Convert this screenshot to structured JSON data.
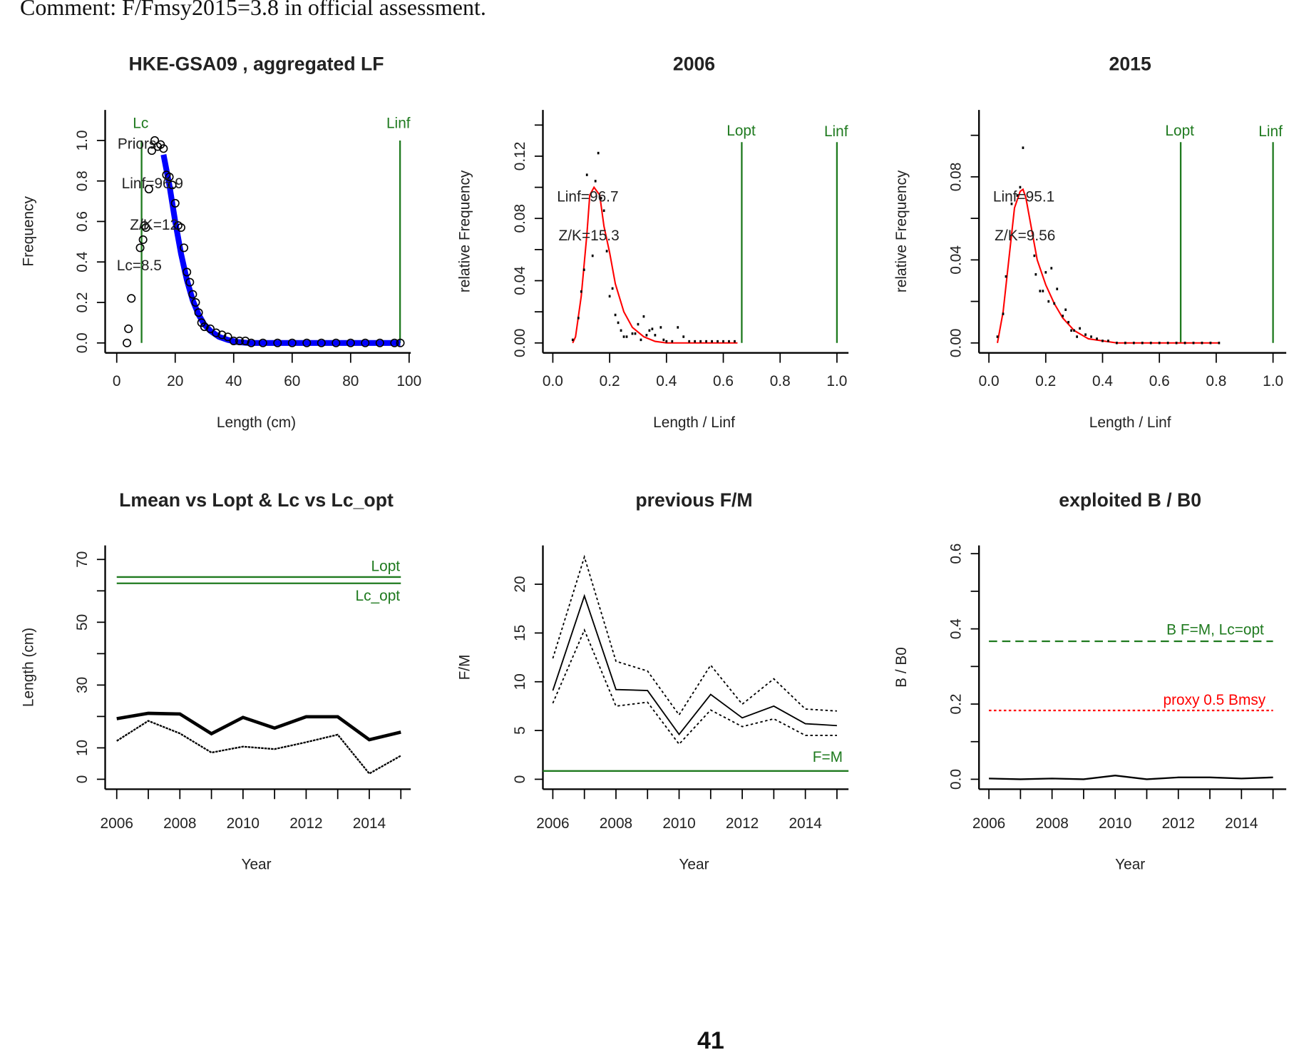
{
  "comment": "Comment: F/Fmsy2015=3.8 in official assessment.",
  "page_number": "41",
  "colors": {
    "green": "#1f7a1f",
    "red": "#ff0000",
    "blue": "#0000ff",
    "black": "#000000"
  },
  "chart_data": [
    {
      "type": "scatter",
      "title": "HKE-GSA09 , aggregated LF",
      "xlabel": "Length (cm)",
      "ylabel": "Frequency",
      "xlim": [
        0,
        100
      ],
      "ylim": [
        0,
        1.1
      ],
      "xticks": [
        "0",
        "20",
        "40",
        "60",
        "80",
        "100"
      ],
      "yticks": [
        "0.0",
        "0.2",
        "0.4",
        "0.6",
        "0.8",
        "1.0"
      ],
      "points": {
        "x": [
          3.5,
          4,
          5,
          8,
          9,
          9.5,
          10,
          11,
          12,
          13,
          14,
          15,
          16,
          17,
          18,
          19,
          20,
          21,
          22,
          23,
          24,
          25,
          26,
          27,
          28,
          29,
          30,
          32,
          34,
          36,
          38,
          40,
          42,
          44,
          46,
          50,
          55,
          60,
          65,
          70,
          75,
          80,
          85,
          90,
          95,
          97
        ],
        "y": [
          0,
          0.07,
          0.22,
          0.47,
          0.51,
          0.58,
          0.57,
          0.76,
          0.95,
          1.0,
          0.97,
          0.98,
          0.96,
          0.83,
          0.82,
          0.78,
          0.69,
          0.58,
          0.57,
          0.47,
          0.35,
          0.3,
          0.24,
          0.2,
          0.15,
          0.1,
          0.08,
          0.07,
          0.05,
          0.04,
          0.03,
          0.01,
          0.01,
          0.01,
          0,
          0,
          0,
          0,
          0,
          0,
          0,
          0,
          0,
          0,
          0,
          0
        ]
      },
      "fit": {
        "x": [
          16,
          18,
          20,
          22,
          24,
          26,
          28,
          30,
          32,
          35,
          38,
          41,
          45,
          60,
          80,
          97
        ],
        "y": [
          0.93,
          0.78,
          0.6,
          0.44,
          0.31,
          0.21,
          0.14,
          0.09,
          0.06,
          0.03,
          0.015,
          0.005,
          0,
          0,
          0,
          0
        ]
      },
      "vlines": [
        {
          "x": 8.5,
          "label": "Lc"
        },
        {
          "x": 96.9,
          "label": "Linf"
        }
      ],
      "annotations": [
        "Priors",
        "Linf=96.9",
        "Z/K=12",
        "Lc=8.5"
      ]
    },
    {
      "type": "scatter",
      "title": "2006",
      "xlabel": "Length / Linf",
      "ylabel": "relative Frequency",
      "xlim": [
        0,
        1.05
      ],
      "ylim": [
        0,
        0.14
      ],
      "xticks": [
        "0.0",
        "0.2",
        "0.4",
        "0.6",
        "0.8",
        "1.0"
      ],
      "yticks": [
        "0.00",
        "0.04",
        "0.08",
        "0.12"
      ],
      "points": {
        "x": [
          0.07,
          0.09,
          0.1,
          0.11,
          0.12,
          0.14,
          0.15,
          0.16,
          0.17,
          0.18,
          0.19,
          0.2,
          0.21,
          0.22,
          0.23,
          0.24,
          0.25,
          0.26,
          0.28,
          0.29,
          0.3,
          0.31,
          0.32,
          0.33,
          0.34,
          0.35,
          0.36,
          0.38,
          0.39,
          0.4,
          0.42,
          0.44,
          0.46,
          0.48,
          0.5,
          0.52,
          0.54,
          0.56,
          0.58,
          0.6,
          0.62,
          0.64
        ],
        "y": [
          0.002,
          0.016,
          0.033,
          0.047,
          0.108,
          0.056,
          0.104,
          0.122,
          0.093,
          0.085,
          0.059,
          0.03,
          0.035,
          0.018,
          0.013,
          0.008,
          0.004,
          0.004,
          0.006,
          0.006,
          0.012,
          0.002,
          0.017,
          0.005,
          0.008,
          0.009,
          0.005,
          0.01,
          0.002,
          0.001,
          0.001,
          0.01,
          0.004,
          0.001,
          0.001,
          0.001,
          0.001,
          0.001,
          0.001,
          0.001,
          0.001,
          0.001
        ]
      },
      "fit": {
        "x": [
          0.07,
          0.08,
          0.1,
          0.12,
          0.13,
          0.145,
          0.165,
          0.18,
          0.2,
          0.22,
          0.25,
          0.28,
          0.32,
          0.36,
          0.4,
          0.65
        ],
        "y": [
          0,
          0.004,
          0.03,
          0.07,
          0.095,
          0.1,
          0.095,
          0.075,
          0.058,
          0.038,
          0.02,
          0.01,
          0.004,
          0.001,
          0,
          0
        ]
      },
      "vlines": [
        {
          "x": 0.665,
          "label": "Lopt"
        },
        {
          "x": 1.0,
          "label": "Linf"
        }
      ],
      "annotations": [
        "Linf=96.7",
        "Z/K=15.3"
      ]
    },
    {
      "type": "scatter",
      "title": "2015",
      "xlabel": "Length / Linf",
      "ylabel": "relative Frequency",
      "xlim": [
        0,
        1.05
      ],
      "ylim": [
        0,
        0.1
      ],
      "xticks": [
        "0.0",
        "0.2",
        "0.4",
        "0.6",
        "0.8",
        "1.0"
      ],
      "yticks": [
        "0.00",
        "0.04",
        "0.08"
      ],
      "points": {
        "x": [
          0.03,
          0.05,
          0.06,
          0.08,
          0.1,
          0.11,
          0.12,
          0.16,
          0.165,
          0.18,
          0.19,
          0.2,
          0.21,
          0.22,
          0.23,
          0.24,
          0.26,
          0.27,
          0.28,
          0.29,
          0.3,
          0.31,
          0.32,
          0.34,
          0.36,
          0.38,
          0.4,
          0.42,
          0.45,
          0.48,
          0.51,
          0.54,
          0.57,
          0.6,
          0.63,
          0.66,
          0.69,
          0.72,
          0.75,
          0.78,
          0.81
        ],
        "y": [
          0.003,
          0.014,
          0.032,
          0.067,
          0.071,
          0.075,
          0.094,
          0.042,
          0.033,
          0.025,
          0.025,
          0.034,
          0.02,
          0.036,
          0.019,
          0.026,
          0.013,
          0.016,
          0.01,
          0.006,
          0.006,
          0.003,
          0.007,
          0.004,
          0.003,
          0.002,
          0.001,
          0.001,
          0,
          0,
          0,
          0,
          0,
          0,
          0,
          0,
          0,
          0,
          0,
          0,
          0
        ]
      },
      "fit": {
        "x": [
          0.03,
          0.05,
          0.07,
          0.09,
          0.11,
          0.12,
          0.13,
          0.15,
          0.17,
          0.2,
          0.23,
          0.26,
          0.3,
          0.35,
          0.4,
          0.45,
          0.81
        ],
        "y": [
          0,
          0.015,
          0.04,
          0.065,
          0.073,
          0.074,
          0.07,
          0.055,
          0.04,
          0.028,
          0.019,
          0.012,
          0.006,
          0.002,
          0.001,
          0,
          0
        ]
      },
      "vlines": [
        {
          "x": 0.675,
          "label": "Lopt"
        },
        {
          "x": 1.0,
          "label": "Linf"
        }
      ],
      "annotations": [
        "Linf=95.1",
        "Z/K=9.56"
      ]
    },
    {
      "type": "line",
      "title": "Lmean vs Lopt & Lc vs Lc_opt",
      "xlabel": "Year",
      "ylabel": "Length (cm)",
      "xlim": [
        2006,
        2015
      ],
      "ylim": [
        0,
        72
      ],
      "xticks": [
        "2006",
        "2008",
        "2010",
        "2012",
        "2014"
      ],
      "yticks": [
        "0",
        "10",
        "30",
        "50",
        "70"
      ],
      "x": [
        2006,
        2007,
        2008,
        2009,
        2010,
        2011,
        2012,
        2013,
        2014,
        2015
      ],
      "series": [
        {
          "name": "Lmean",
          "values": [
            19.3,
            21,
            20.8,
            14.5,
            19.7,
            16.3,
            19.9,
            19.9,
            12.6,
            15
          ]
        },
        {
          "name": "Lc",
          "values": [
            12.2,
            18.6,
            14.6,
            8.5,
            10.4,
            9.6,
            11.8,
            14.2,
            1.8,
            7.5
          ]
        }
      ],
      "hlines": [
        {
          "y": 64.4,
          "label": "Lopt"
        },
        {
          "y": 62.4,
          "label": "Lc_opt"
        }
      ]
    },
    {
      "type": "line",
      "title": "previous F/M",
      "xlabel": "Year",
      "ylabel": "F/M",
      "xlim": [
        2006,
        2015
      ],
      "ylim": [
        0,
        23
      ],
      "xticks": [
        "2006",
        "2008",
        "2010",
        "2012",
        "2014"
      ],
      "yticks": [
        "0",
        "5",
        "10",
        "15",
        "20"
      ],
      "x": [
        2006,
        2007,
        2008,
        2009,
        2010,
        2011,
        2012,
        2013,
        2014,
        2015
      ],
      "series": [
        {
          "values": [
            9.1,
            18.8,
            9.2,
            9.1,
            4.6,
            8.7,
            6.3,
            7.5,
            5.7,
            5.5
          ]
        },
        {
          "values": [
            12.4,
            22.8,
            12.1,
            11.1,
            6.6,
            11.7,
            7.7,
            10.3,
            7.2,
            7.0
          ]
        },
        {
          "values": [
            7.8,
            15.3,
            7.5,
            7.9,
            3.6,
            7.1,
            5.4,
            6.2,
            4.5,
            4.5
          ]
        }
      ],
      "hlines": [
        {
          "y": 0.85,
          "label": "F=M"
        }
      ]
    },
    {
      "type": "line",
      "title": "exploited B / B0",
      "xlabel": "Year",
      "ylabel": "B / B0",
      "xlim": [
        2006,
        2015
      ],
      "ylim": [
        0,
        0.62
      ],
      "xticks": [
        "2006",
        "2008",
        "2010",
        "2012",
        "2014"
      ],
      "yticks": [
        "0.0",
        "0.2",
        "0.4",
        "0.6"
      ],
      "x": [
        2006,
        2007,
        2008,
        2009,
        2010,
        2011,
        2012,
        2013,
        2014,
        2015
      ],
      "series": [
        {
          "values": [
            0.002,
            0.0,
            0.002,
            0.0,
            0.01,
            0.0,
            0.005,
            0.005,
            0.002,
            0.005
          ]
        }
      ],
      "hlines": [
        {
          "y": 0.367,
          "label": "B F=M, Lc=opt"
        },
        {
          "y": 0.183,
          "label": "proxy 0.5 Bmsy"
        }
      ]
    }
  ]
}
